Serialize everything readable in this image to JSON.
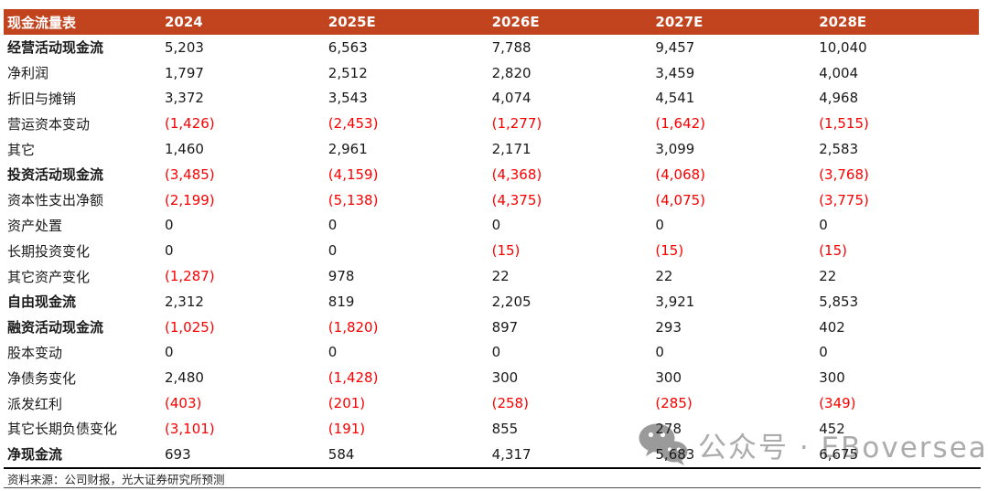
{
  "colors": {
    "header_bg": "#C2441F",
    "header_text": "#FFFFFF",
    "negative_value": "#FB0000",
    "body_text": "#1A1A1A",
    "watermark_gray": "#ABABAB"
  },
  "table": {
    "title": "现金流量表",
    "columns": [
      "2024",
      "2025E",
      "2026E",
      "2027E",
      "2028E"
    ],
    "rows": [
      {
        "label": "经营活动现金流",
        "bold": true,
        "values": [
          "5,203",
          "6,563",
          "7,788",
          "9,457",
          "10,040"
        ]
      },
      {
        "label": "净利润",
        "bold": false,
        "values": [
          "1,797",
          "2,512",
          "2,820",
          "3,459",
          "4,004"
        ]
      },
      {
        "label": "折旧与摊销",
        "bold": false,
        "values": [
          "3,372",
          "3,543",
          "4,074",
          "4,541",
          "4,968"
        ]
      },
      {
        "label": "营运资本变动",
        "bold": false,
        "values": [
          "(1,426)",
          "(2,453)",
          "(1,277)",
          "(1,642)",
          "(1,515)"
        ]
      },
      {
        "label": "其它",
        "bold": false,
        "values": [
          "1,460",
          "2,961",
          "2,171",
          "3,099",
          "2,583"
        ]
      },
      {
        "label": "投资活动现金流",
        "bold": true,
        "values": [
          "(3,485)",
          "(4,159)",
          "(4,368)",
          "(4,068)",
          "(3,768)"
        ]
      },
      {
        "label": "资本性支出净额",
        "bold": false,
        "values": [
          "(2,199)",
          "(5,138)",
          "(4,375)",
          "(4,075)",
          "(3,775)"
        ]
      },
      {
        "label": "资产处置",
        "bold": false,
        "values": [
          "0",
          "0",
          "0",
          "0",
          "0"
        ]
      },
      {
        "label": "长期投资变化",
        "bold": false,
        "values": [
          "0",
          "0",
          "(15)",
          "(15)",
          "(15)"
        ]
      },
      {
        "label": "其它资产变化",
        "bold": false,
        "values": [
          "(1,287)",
          "978",
          "22",
          "22",
          "22"
        ]
      },
      {
        "label": "自由现金流",
        "bold": true,
        "values": [
          "2,312",
          "819",
          "2,205",
          "3,921",
          "5,853"
        ]
      },
      {
        "label": "融资活动现金流",
        "bold": true,
        "values": [
          "(1,025)",
          "(1,820)",
          "897",
          "293",
          "402"
        ]
      },
      {
        "label": "股本变动",
        "bold": false,
        "values": [
          "0",
          "0",
          "0",
          "0",
          "0"
        ]
      },
      {
        "label": "净债务变化",
        "bold": false,
        "values": [
          "2,480",
          "(1,428)",
          "300",
          "300",
          "300"
        ]
      },
      {
        "label": "派发红利",
        "bold": false,
        "values": [
          "(403)",
          "(201)",
          "(258)",
          "(285)",
          "(349)"
        ]
      },
      {
        "label": "其它长期负债变化",
        "bold": false,
        "values": [
          "(3,101)",
          "(191)",
          "855",
          "278",
          "452"
        ]
      },
      {
        "label": "净现金流",
        "bold": true,
        "values": [
          "693",
          "584",
          "4,317",
          "5,683",
          "6,675"
        ]
      }
    ]
  },
  "footer": {
    "source": "资料来源：公司财报，光大证券研究所预测"
  },
  "watermark": {
    "text": "公众号 · EBoversea"
  }
}
